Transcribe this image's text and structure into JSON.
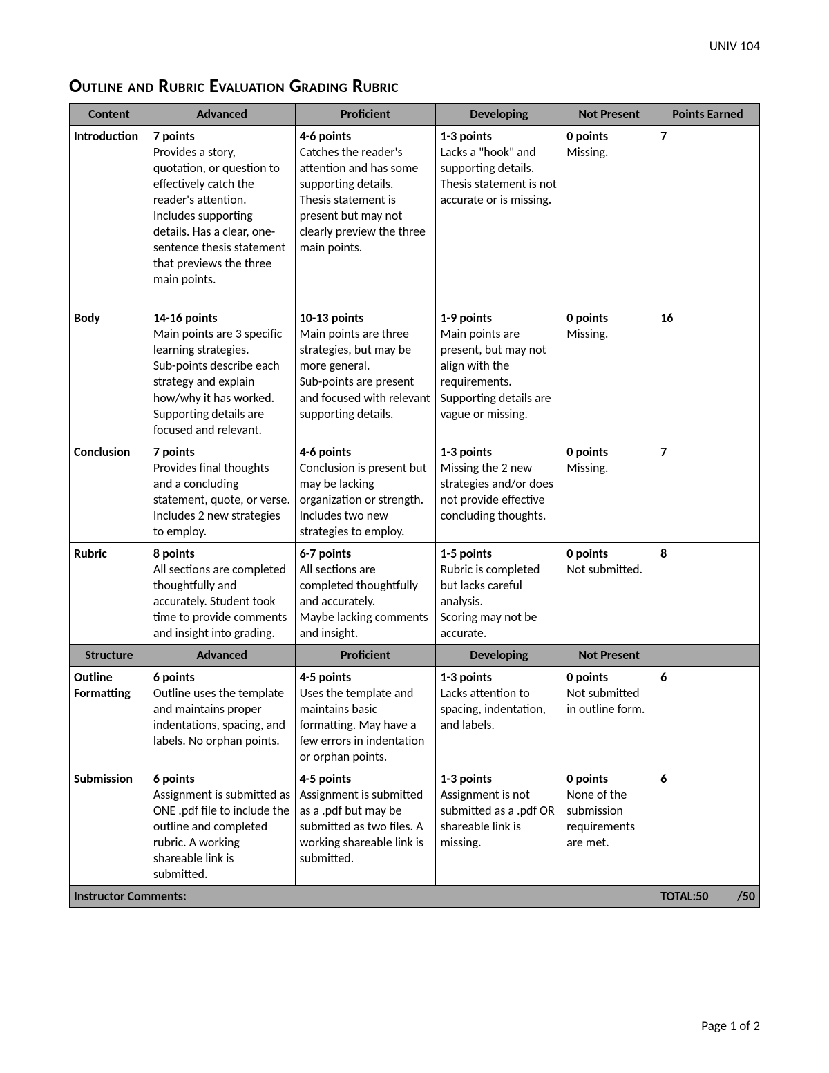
{
  "course_code": "UNIV 104",
  "title_main": "Outline and Rubric Evaluation",
  "title_suffix": "Grading Rubric",
  "page_footer": "Page 1 of 2",
  "headers1": {
    "c1": "Content",
    "c2": "Advanced",
    "c3": "Proficient",
    "c4": "Developing",
    "c5": "Not Present",
    "c6": "Points Earned"
  },
  "headers2": {
    "c1": "Structure",
    "c2": "Advanced",
    "c3": "Proficient",
    "c4": "Developing",
    "c5": "Not Present"
  },
  "footer_row": {
    "label": "Instructor Comments:",
    "total_label": "TOTAL:",
    "total_score": "50",
    "total_max": "/50"
  },
  "rows_content": [
    {
      "label": "Introduction",
      "advanced_pts": "7 points",
      "advanced_txt": "Provides a story, quotation, or question to effectively catch the reader's attention. Includes supporting details. Has a clear, one-sentence thesis statement that previews the three main points.",
      "proficient_pts": "4-6 points",
      "proficient_txt": "Catches the reader's attention and has some supporting details.\nThesis statement is present but may not clearly preview the three main points.",
      "developing_pts": "1-3 points",
      "developing_txt": "Lacks a \"hook\" and supporting details. Thesis statement is not accurate or is missing.",
      "notpresent_pts": "0 points",
      "notpresent_txt": "Missing.",
      "earned": "7",
      "spacer": true
    },
    {
      "label": "Body",
      "advanced_pts": "14-16 points",
      "advanced_txt": "Main points are 3 specific learning strategies.\nSub-points describe each strategy and explain how/why it has worked. Supporting details are focused and relevant.",
      "proficient_pts": "10-13 points",
      "proficient_txt": "Main points are three strategies, but may be more general.\nSub-points are present and focused with relevant supporting details.",
      "developing_pts": "1-9 points",
      "developing_txt": "Main points are present, but may not align with the requirements. Supporting details are vague or missing.",
      "notpresent_pts": "0 points",
      "notpresent_txt": "Missing.",
      "earned": "16",
      "spacer": false
    },
    {
      "label": "Conclusion",
      "advanced_pts": "7 points",
      "advanced_txt": "Provides final thoughts and a concluding statement, quote, or verse.\nIncludes 2 new strategies to employ.",
      "proficient_pts": "4-6 points",
      "proficient_txt": "Conclusion is present but may be lacking organization or strength.\nIncludes two new strategies to employ.",
      "developing_pts": "1-3 points",
      "developing_txt": "Missing the 2 new strategies and/or does not provide effective concluding thoughts.",
      "notpresent_pts": "0 points",
      "notpresent_txt": "Missing.",
      "earned": "7",
      "spacer": false
    },
    {
      "label": "Rubric",
      "advanced_pts": "8 points",
      "advanced_txt": "All sections are completed thoughtfully and accurately. Student took time to provide comments and insight into grading.",
      "proficient_pts": "6-7 points",
      "proficient_txt": "All sections are completed thoughtfully and accurately.\nMaybe lacking comments and insight.",
      "developing_pts": "1-5 points",
      "developing_txt": "Rubric is completed but lacks careful analysis.\nScoring may not be accurate.",
      "notpresent_pts": "0 points",
      "notpresent_txt": "Not submitted.",
      "earned": "8",
      "spacer": false
    }
  ],
  "rows_structure": [
    {
      "label": "Outline Formatting",
      "advanced_pts": "6 points",
      "advanced_txt": "Outline uses the template and maintains proper indentations, spacing, and labels.  No orphan points.",
      "proficient_pts": "4-5 points",
      "proficient_txt": "Uses the template and maintains basic formatting. May have a few errors in indentation or orphan points.",
      "developing_pts": "1-3 points",
      "developing_txt": "Lacks attention to spacing, indentation, and labels.",
      "notpresent_pts": "0 points",
      "notpresent_txt": "Not submitted in outline form.",
      "earned": "6",
      "spacer": false
    },
    {
      "label": "Submission",
      "advanced_pts": "6 points",
      "advanced_txt": "Assignment is submitted as ONE .pdf file to include the outline and completed rubric. A working shareable link is submitted.",
      "proficient_pts": "4-5 points",
      "proficient_txt": "Assignment is submitted as a .pdf but may be submitted as two files. A working shareable link is submitted.",
      "developing_pts": "1-3 points",
      "developing_txt": "Assignment is not submitted as a .pdf OR shareable link is missing.",
      "notpresent_pts": "0 points",
      "notpresent_txt": "None of the submission requirements are met.",
      "earned": "6",
      "spacer": false
    }
  ]
}
